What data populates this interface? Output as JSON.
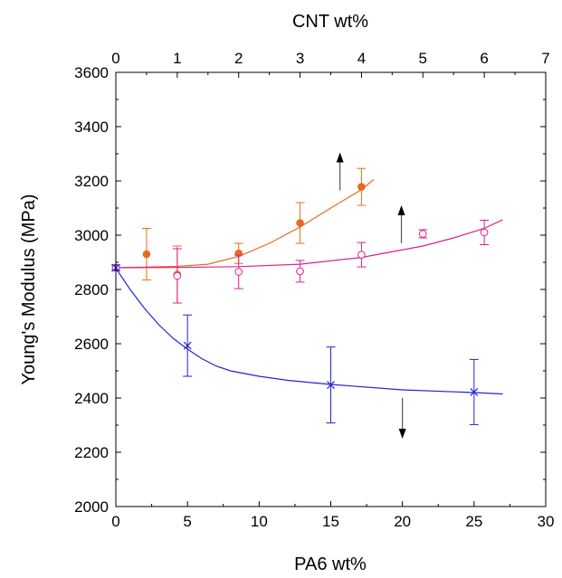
{
  "chart_data": {
    "type": "scatter",
    "xlabel_bottom": "PA6 wt%",
    "xlabel_top": "CNT wt%",
    "ylabel": "Young's Modulus (MPa)",
    "xlim_bottom": [
      0,
      30
    ],
    "xlim_top": [
      0,
      7
    ],
    "ylim": [
      2000,
      3600
    ],
    "x_ticks_bottom": [
      0,
      5,
      10,
      15,
      20,
      25,
      30
    ],
    "x_ticks_top": [
      0,
      1,
      2,
      3,
      4,
      5,
      6,
      7
    ],
    "y_ticks": [
      2000,
      2200,
      2400,
      2600,
      2800,
      3000,
      3200,
      3400,
      3600
    ],
    "grid": false,
    "legend": "none",
    "series": [
      {
        "axis": "top",
        "color": "#e86a1e",
        "marker": "filled-circle",
        "points": [
          {
            "x": 0,
            "y": 2880,
            "err": 10
          },
          {
            "x": 0.5,
            "y": 2930,
            "err": 95
          },
          {
            "x": 1,
            "y": 2855,
            "err": 105
          },
          {
            "x": 2,
            "y": 2933,
            "err": 37
          },
          {
            "x": 3,
            "y": 3045,
            "err": 75
          },
          {
            "x": 4,
            "y": 3178,
            "err": 68
          }
        ],
        "fit": [
          [
            0,
            2880
          ],
          [
            1,
            2885
          ],
          [
            1.5,
            2893
          ],
          [
            2,
            2922
          ],
          [
            2.5,
            2970
          ],
          [
            3,
            3030
          ],
          [
            3.5,
            3100
          ],
          [
            4,
            3168
          ],
          [
            4.2,
            3205
          ]
        ],
        "arrow": {
          "x": 3.65,
          "y_from": 3165,
          "y_to": 3305
        }
      },
      {
        "axis": "top",
        "color": "#e0208c",
        "marker": "open-circle",
        "points": [
          {
            "x": 0,
            "y": 2880,
            "err": 10
          },
          {
            "x": 1,
            "y": 2850,
            "err": 100
          },
          {
            "x": 2,
            "y": 2865,
            "err": 62
          },
          {
            "x": 3,
            "y": 2867,
            "err": 40
          },
          {
            "x": 4,
            "y": 2928,
            "err": 45
          },
          {
            "x": 5,
            "y": 3005,
            "err": 15
          },
          {
            "x": 6,
            "y": 3010,
            "err": 45
          }
        ],
        "fit": [
          [
            0,
            2880
          ],
          [
            1,
            2881
          ],
          [
            2,
            2884
          ],
          [
            3,
            2893
          ],
          [
            4,
            2918
          ],
          [
            5,
            2960
          ],
          [
            5.5,
            2990
          ],
          [
            6,
            3025
          ],
          [
            6.3,
            3057
          ]
        ],
        "arrow": {
          "x": 4.65,
          "y_from": 2970,
          "y_to": 3110
        }
      },
      {
        "axis": "bottom",
        "color": "#2323d6",
        "marker": "x",
        "points": [
          {
            "x": 0,
            "y": 2880,
            "err": 10
          },
          {
            "x": 5,
            "y": 2593,
            "err": 113
          },
          {
            "x": 15,
            "y": 2448,
            "err": 140
          },
          {
            "x": 25,
            "y": 2422,
            "err": 120
          }
        ],
        "fit": [
          [
            0,
            2878
          ],
          [
            1,
            2800
          ],
          [
            2,
            2730
          ],
          [
            3,
            2670
          ],
          [
            4,
            2620
          ],
          [
            5,
            2580
          ],
          [
            6,
            2545
          ],
          [
            7,
            2518
          ],
          [
            8,
            2500
          ],
          [
            10,
            2480
          ],
          [
            12,
            2465
          ],
          [
            15,
            2450
          ],
          [
            20,
            2430
          ],
          [
            25,
            2420
          ],
          [
            27,
            2415
          ]
        ],
        "arrow": {
          "x": 20,
          "y_from": 2400,
          "y_to": 2250
        }
      }
    ]
  }
}
